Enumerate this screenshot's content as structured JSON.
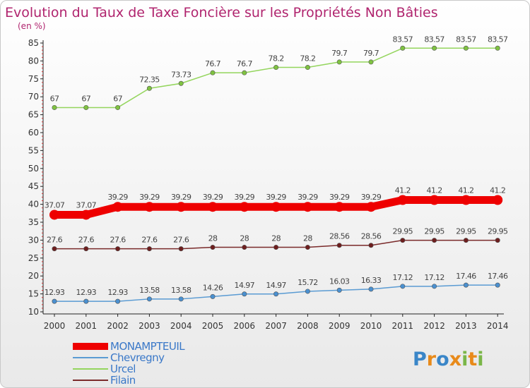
{
  "title": "Evolution du Taux de Taxe Foncière sur les Propriétés Non Bâties",
  "subtitle": "(en %)",
  "logo": "Proxiti",
  "chart_data": {
    "type": "line",
    "x": [
      "2000",
      "2001",
      "2002",
      "2003",
      "2004",
      "2005",
      "2006",
      "2007",
      "2008",
      "2009",
      "2010",
      "2011",
      "2012",
      "2013",
      "2014"
    ],
    "ylim": [
      10,
      85
    ],
    "yticks": [
      "10",
      "15",
      "20",
      "25",
      "30",
      "35",
      "40",
      "45",
      "50",
      "55",
      "60",
      "65",
      "70",
      "75",
      "80",
      "85"
    ],
    "grid": false,
    "legend_position": "bottom-left",
    "series": [
      {
        "name": "Urcel",
        "color": "#94d55d",
        "point_color": "#7fc241",
        "values": [
          67,
          67,
          67,
          72.35,
          73.73,
          76.7,
          76.7,
          78.2,
          78.2,
          79.7,
          79.7,
          83.57,
          83.57,
          83.57,
          83.57
        ],
        "labels": [
          "67",
          "67",
          "67",
          "72.35",
          "73.73",
          "76.7",
          "76.7",
          "78.2",
          "78.2",
          "79.7",
          "79.7",
          "83.57",
          "83.57",
          "83.57",
          "83.57"
        ]
      },
      {
        "name": "MONAMPTEUIL",
        "color": "#ee0000",
        "point_color": "#ee0000",
        "highlight": true,
        "values": [
          37.07,
          37.07,
          39.29,
          39.29,
          39.29,
          39.29,
          39.29,
          39.29,
          39.29,
          39.29,
          39.29,
          41.2,
          41.2,
          41.2,
          41.2
        ],
        "labels": [
          "37.07",
          "37.07",
          "39.29",
          "39.29",
          "39.29",
          "39.29",
          "39.29",
          "39.29",
          "39.29",
          "39.29",
          "39.29",
          "41.2",
          "41.2",
          "41.2",
          "41.2"
        ]
      },
      {
        "name": "Filain",
        "color": "#7a2a2a",
        "point_color": "#6e1e1e",
        "values": [
          27.6,
          27.6,
          27.6,
          27.6,
          27.6,
          28,
          28,
          28,
          28,
          28.56,
          28.56,
          29.95,
          29.95,
          29.95,
          29.95
        ],
        "labels": [
          "27.6",
          "27.6",
          "27.6",
          "27.6",
          "27.6",
          "28",
          "28",
          "28",
          "28",
          "28.56",
          "28.56",
          "29.95",
          "29.95",
          "29.95",
          "29.95"
        ]
      },
      {
        "name": "Chevregny",
        "color": "#5a9bd3",
        "point_color": "#4a90d0",
        "values": [
          12.93,
          12.93,
          12.93,
          13.58,
          13.58,
          14.26,
          14.97,
          14.97,
          15.72,
          16.03,
          16.33,
          17.12,
          17.12,
          17.46,
          17.46
        ],
        "labels": [
          "12.93",
          "12.93",
          "12.93",
          "13.58",
          "13.58",
          "14.26",
          "14.97",
          "14.97",
          "15.72",
          "16.03",
          "16.33",
          "17.12",
          "17.12",
          "17.46",
          "17.46"
        ]
      }
    ],
    "legend_order": [
      "MONAMPTEUIL",
      "Chevregny",
      "Urcel",
      "Filain"
    ]
  }
}
